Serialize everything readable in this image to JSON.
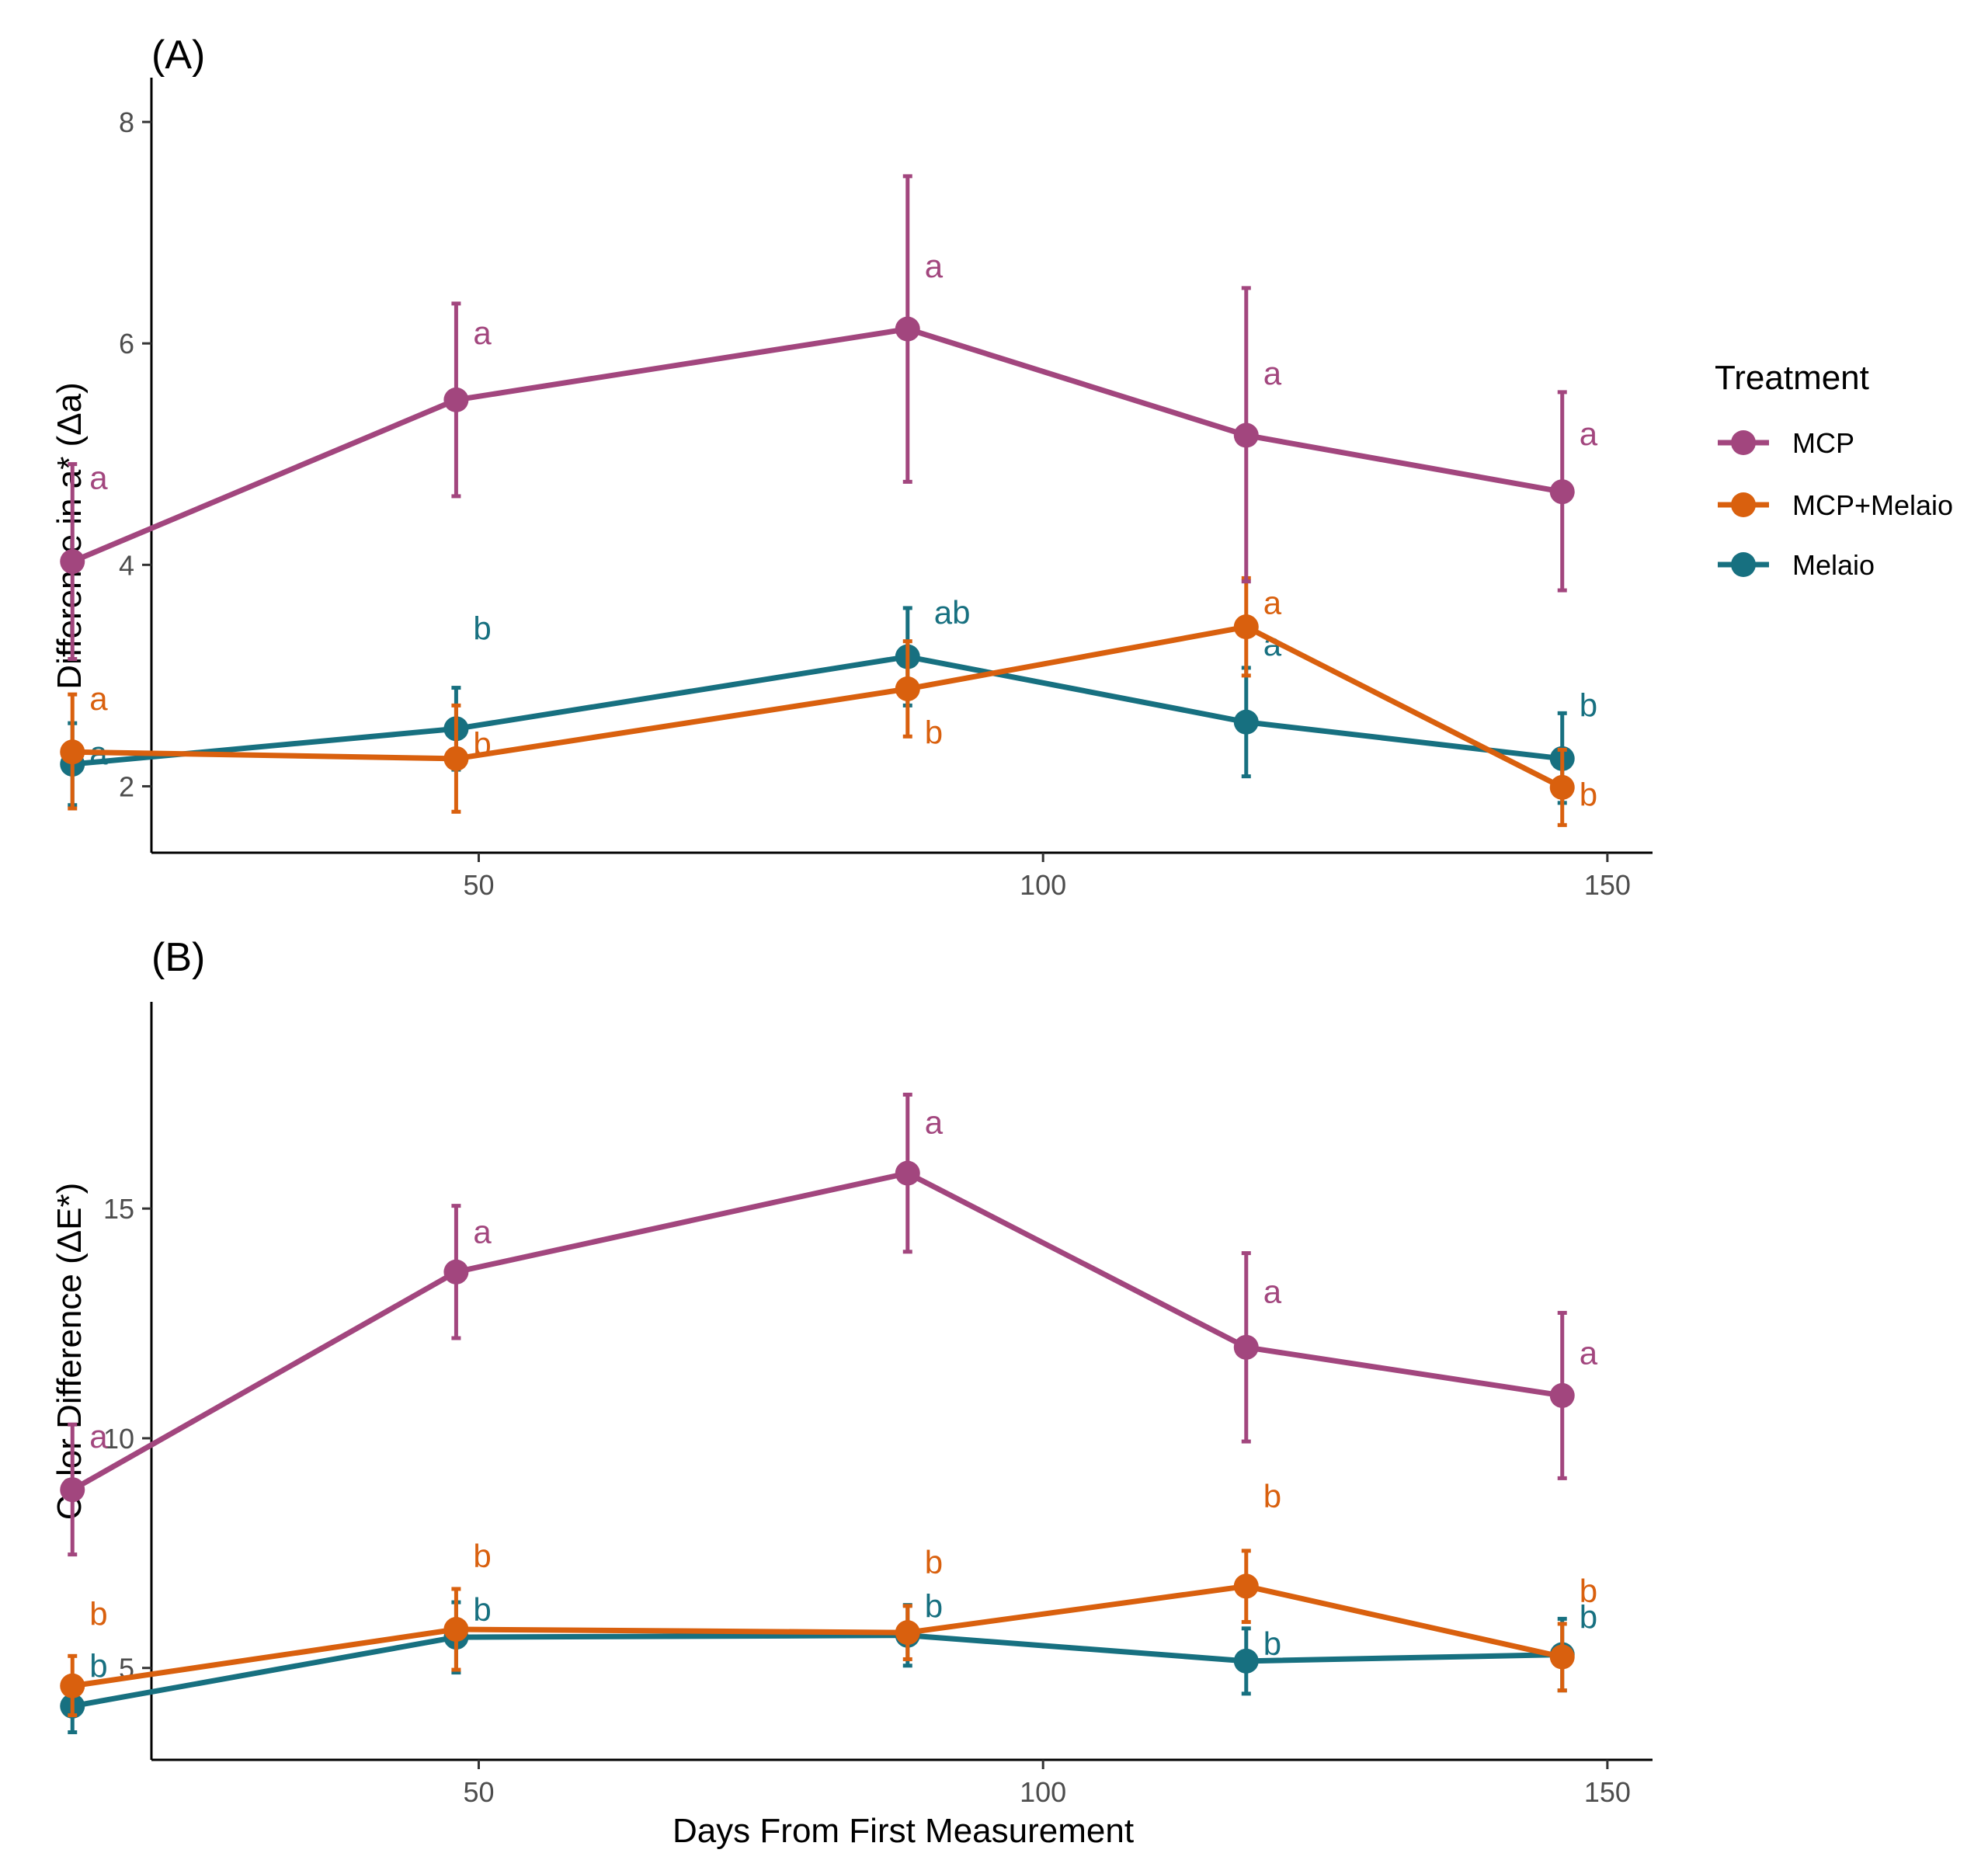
{
  "colors": {
    "MCP": "#a2467e",
    "MCP+Melaio": "#d9600e",
    "Melaio": "#177080"
  },
  "legend": {
    "title": "Treatment",
    "entries": [
      "MCP",
      "MCP+Melaio",
      "Melaio"
    ]
  },
  "xlabel": "Days From First Measurement",
  "chart_data": [
    {
      "type": "line",
      "panel_label": "(A)",
      "title": "",
      "xlabel": "",
      "ylabel": "Difference in a* (Δa)",
      "xlim": [
        21,
        154
      ],
      "ylim": [
        1.4,
        8.4
      ],
      "x_ticks": [
        50,
        100,
        150
      ],
      "y_ticks": [
        2,
        4,
        6,
        8
      ],
      "grid": false,
      "x": [
        14,
        48,
        88,
        118,
        146
      ],
      "series": [
        {
          "name": "MCP",
          "values": [
            4.03,
            5.49,
            6.13,
            5.17,
            4.66
          ],
          "error_low": [
            3.15,
            4.62,
            4.75,
            3.85,
            3.77
          ],
          "error_high": [
            4.91,
            6.36,
            7.51,
            6.5,
            5.56
          ],
          "letters": [
            "a",
            "a",
            "a",
            "a",
            "a"
          ]
        },
        {
          "name": "MCP+Melaio",
          "values": [
            2.31,
            2.25,
            2.88,
            3.44,
            1.99
          ],
          "error_low": [
            1.8,
            1.77,
            2.45,
            3.0,
            1.65
          ],
          "error_high": [
            2.83,
            2.73,
            3.31,
            3.88,
            2.33
          ],
          "letters": [
            "a",
            "b",
            "b",
            "a",
            "b"
          ]
        },
        {
          "name": "Melaio",
          "values": [
            2.2,
            2.52,
            3.17,
            2.58,
            2.25
          ],
          "error_low": [
            1.83,
            2.15,
            2.73,
            2.09,
            1.85
          ],
          "error_high": [
            2.57,
            2.89,
            3.61,
            3.07,
            2.66
          ],
          "letters": [
            "a",
            "b",
            "ab",
            "a",
            "b"
          ]
        }
      ]
    },
    {
      "type": "line",
      "panel_label": "(B)",
      "title": "",
      "xlabel": "Days From First Measurement",
      "ylabel": "Color Difference (ΔE*)",
      "xlim": [
        21,
        154
      ],
      "ylim": [
        3.0,
        19.5
      ],
      "x_ticks": [
        50,
        100,
        150
      ],
      "y_ticks": [
        5,
        10,
        15
      ],
      "grid": false,
      "x": [
        14,
        48,
        88,
        118,
        146
      ],
      "series": [
        {
          "name": "MCP",
          "values": [
            8.88,
            13.62,
            15.77,
            11.98,
            10.93
          ],
          "error_low": [
            7.47,
            12.18,
            14.06,
            9.93,
            9.13
          ],
          "error_high": [
            10.3,
            15.06,
            17.48,
            14.03,
            12.73
          ],
          "letters": [
            "a",
            "a",
            "a",
            "a",
            "a"
          ]
        },
        {
          "name": "MCP+Melaio",
          "values": [
            4.61,
            5.84,
            5.77,
            6.78,
            5.24
          ],
          "error_low": [
            3.97,
            4.96,
            5.19,
            6.0,
            4.51
          ],
          "error_high": [
            5.26,
            6.72,
            6.35,
            7.55,
            5.96
          ],
          "letters": [
            "b",
            "b",
            "b",
            "b",
            "b"
          ]
        },
        {
          "name": "Melaio",
          "values": [
            4.17,
            5.67,
            5.71,
            5.15,
            5.29
          ],
          "error_low": [
            3.6,
            4.9,
            5.05,
            4.44,
            4.51
          ],
          "error_high": [
            4.73,
            6.43,
            6.37,
            5.86,
            6.07
          ],
          "letters": [
            "b",
            "b",
            "b",
            "b",
            "b"
          ]
        }
      ]
    }
  ]
}
